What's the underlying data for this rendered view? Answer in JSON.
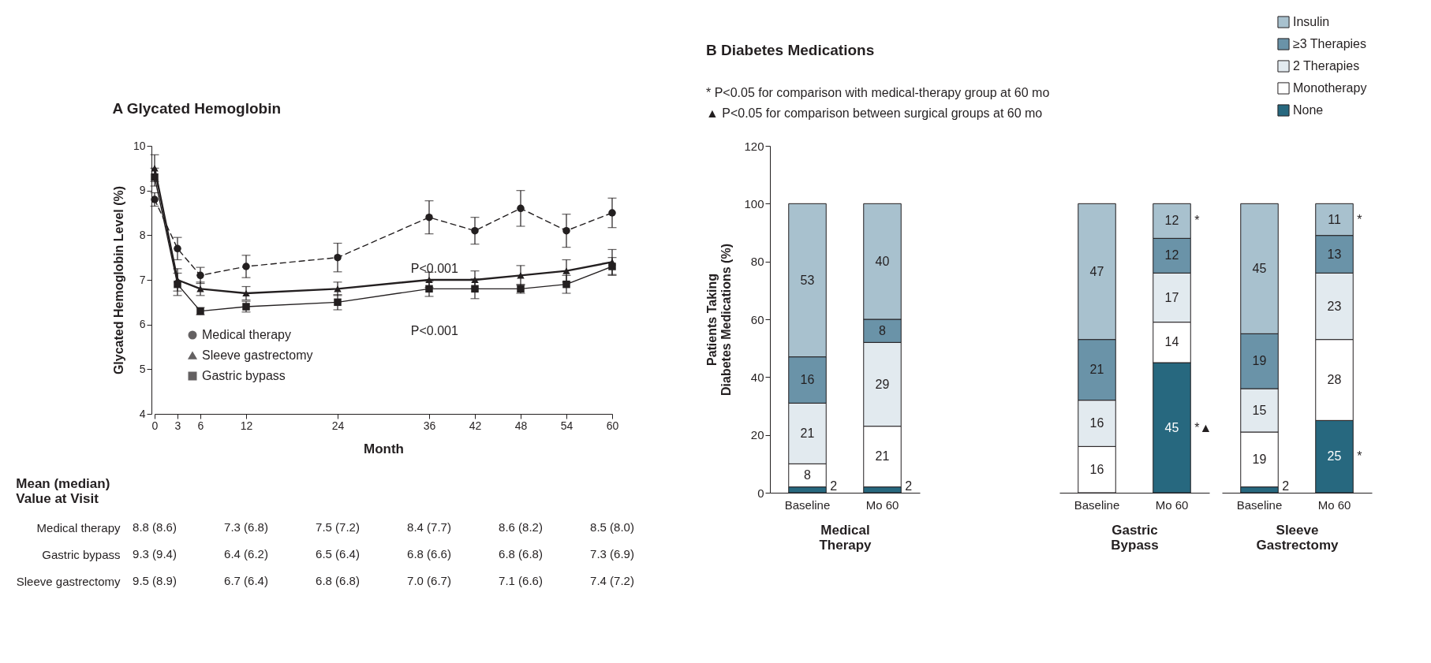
{
  "chart_data": [
    {
      "type": "line",
      "title": "A Glycated Hemoglobin",
      "xlabel": "Month",
      "ylabel": "Glycated Hemoglobin Level (%)",
      "x": [
        0,
        3,
        6,
        12,
        24,
        36,
        42,
        48,
        54,
        60
      ],
      "xlim": [
        0,
        60
      ],
      "xticks": [
        0,
        3,
        6,
        12,
        24,
        36,
        42,
        48,
        54,
        60
      ],
      "ylim": [
        4,
        10
      ],
      "yticks": [
        4,
        5,
        6,
        7,
        8,
        9,
        10
      ],
      "legend": "bottom left",
      "series": [
        {
          "name": "Medical therapy",
          "color": "#231f20",
          "marker": "circle",
          "line_style": "dashed",
          "values": [
            8.8,
            7.7,
            7.1,
            7.3,
            7.5,
            8.4,
            8.1,
            8.6,
            8.1,
            8.5
          ],
          "errors": [
            0.15,
            0.25,
            0.18,
            0.25,
            0.32,
            0.37,
            0.3,
            0.4,
            0.37,
            0.33
          ]
        },
        {
          "name": "Sleeve gastrectomy",
          "color": "#231f20",
          "marker": "triangle",
          "line_style": "solid",
          "values": [
            9.5,
            7.0,
            6.8,
            6.7,
            6.8,
            7.0,
            7.0,
            7.1,
            7.2,
            7.4
          ],
          "errors": [
            0.3,
            0.25,
            0.15,
            0.15,
            0.15,
            0.17,
            0.2,
            0.22,
            0.25,
            0.28
          ]
        },
        {
          "name": "Gastric bypass",
          "color": "#231f20",
          "marker": "square",
          "line_style": "solid",
          "values": [
            9.3,
            6.9,
            6.3,
            6.4,
            6.5,
            6.8,
            6.8,
            6.8,
            6.9,
            7.3
          ],
          "errors": [
            0.2,
            0.25,
            0.08,
            0.12,
            0.17,
            0.17,
            0.22,
            0.1,
            0.2,
            0.2
          ]
        }
      ],
      "annotations": [
        "P<0.001",
        "P<0.001"
      ]
    },
    {
      "type": "other",
      "title": "Mean (median) Value at Visit",
      "y_categories": [
        "Medical therapy",
        "Gastric bypass",
        "Sleeve gastrectomy"
      ],
      "cell_labels": [
        [
          "8.8 (8.6)",
          "7.3 (6.8)",
          "7.5 (7.2)",
          "8.4 (7.7)",
          "8.6 (8.2)",
          "8.5 (8.0)"
        ],
        [
          "9.3 (9.4)",
          "6.4 (6.2)",
          "6.5 (6.4)",
          "6.8 (6.6)",
          "6.8 (6.8)",
          "7.3 (6.9)"
        ],
        [
          "9.5 (8.9)",
          "6.7 (6.4)",
          "6.8 (6.8)",
          "7.0 (6.7)",
          "7.1 (6.6)",
          "7.4 (7.2)"
        ]
      ]
    },
    {
      "type": "bar",
      "stacked": true,
      "title": "B Diabetes Medications",
      "categories": [
        "Baseline",
        "Mo 60"
      ],
      "xlabel": "Medical Therapy",
      "ylabel": "Patients Taking Diabetes Medications (%)",
      "ylim": [
        0,
        120
      ],
      "yticks": [
        0,
        20,
        40,
        60,
        80,
        100,
        120
      ],
      "data_labels": true,
      "legend": "top right",
      "series": [
        {
          "name": "None",
          "color": "#27687f",
          "values": [
            2,
            2
          ]
        },
        {
          "name": "Monotherapy",
          "color": "#ffffff",
          "values": [
            8,
            21
          ]
        },
        {
          "name": "2 Therapies",
          "color": "#e2eaef",
          "values": [
            21,
            29
          ]
        },
        {
          "name": "≥3 Therapies",
          "color": "#6a93a8",
          "values": [
            16,
            8
          ]
        },
        {
          "name": "Insulin",
          "color": "#a8c1ce",
          "values": [
            53,
            40
          ]
        }
      ],
      "annotations": [
        "* P<0.05 for comparison with medical-therapy group at 60 mo",
        "▲ P<0.05 for comparison between surgical groups at 60 mo"
      ]
    },
    {
      "type": "bar",
      "stacked": true,
      "categories": [
        "Baseline",
        "Mo 60"
      ],
      "xlabel": "Gastric Bypass",
      "ylim": [
        0,
        120
      ],
      "yticks": [
        0,
        20,
        40,
        60,
        80,
        100,
        120
      ],
      "tick_labels": "x",
      "data_labels": true,
      "series": [
        {
          "color": "#27687f",
          "values": [
            null,
            45
          ]
        },
        {
          "color": "#ffffff",
          "values": [
            16,
            14
          ]
        },
        {
          "color": "#e2eaef",
          "values": [
            16,
            17
          ]
        },
        {
          "color": "#6a93a8",
          "values": [
            21,
            12
          ]
        },
        {
          "color": "#a8c1ce",
          "values": [
            47,
            12
          ]
        }
      ],
      "annotations": [
        "*",
        "*▲"
      ]
    },
    {
      "type": "bar",
      "stacked": true,
      "categories": [
        "Baseline",
        "Mo 60"
      ],
      "xlabel": "Sleeve Gastrectomy",
      "ylim": [
        0,
        120
      ],
      "yticks": [
        0,
        20,
        40,
        60,
        80,
        100,
        120
      ],
      "tick_labels": "x",
      "data_labels": true,
      "series": [
        {
          "color": "#27687f",
          "values": [
            2,
            25
          ]
        },
        {
          "color": "#ffffff",
          "values": [
            19,
            28
          ]
        },
        {
          "color": "#e2eaef",
          "values": [
            15,
            23
          ]
        },
        {
          "color": "#6a93a8",
          "values": [
            19,
            13
          ]
        },
        {
          "color": "#a8c1ce",
          "values": [
            45,
            11
          ]
        }
      ],
      "annotations": [
        "*",
        "*"
      ]
    }
  ]
}
